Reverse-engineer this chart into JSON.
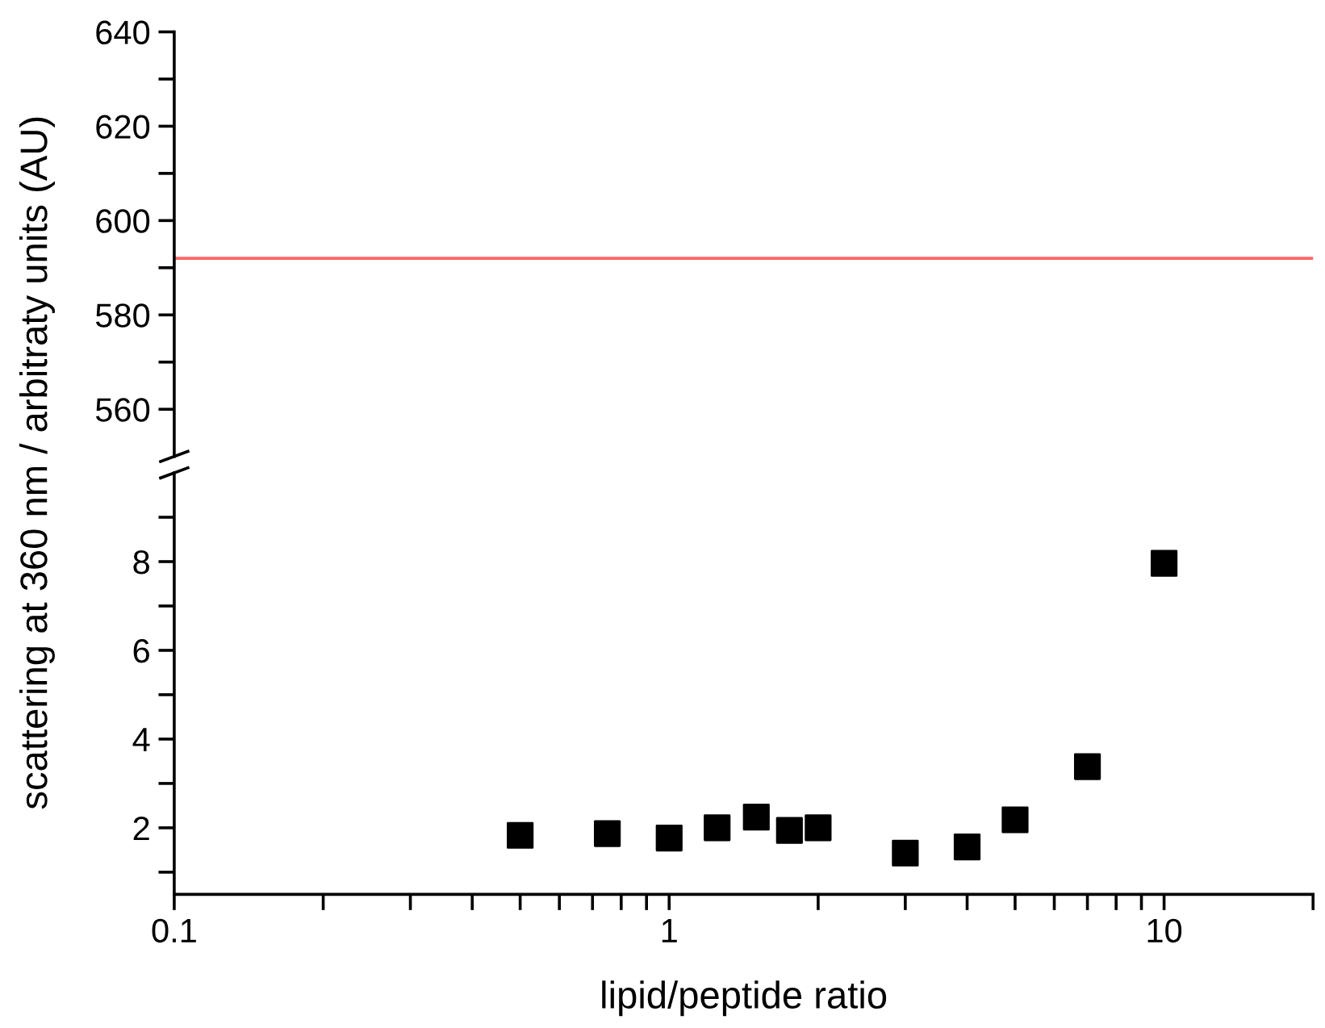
{
  "chart_data": [
    {
      "type": "scatter",
      "ylabel": "scattering at 360 nm / arbitraty units (AU)",
      "log": "x",
      "xlim": [
        0.1,
        20
      ],
      "ylim": [
        550,
        640
      ],
      "yticks": [
        560,
        {
          "value": 570,
          "label": null
        },
        580,
        {
          "value": 590,
          "label": null
        },
        600,
        {
          "value": 610,
          "label": null
        },
        620,
        {
          "value": 630,
          "label": null
        },
        640
      ],
      "ref_lines": [
        {
          "axis": "y",
          "value": 592,
          "label": null,
          "color": "#ff6666"
        }
      ],
      "tick_labels": "y",
      "grid": false,
      "legend": false
    },
    {
      "type": "scatter",
      "xlabel": "lipid/peptide ratio",
      "log": "x",
      "xlim": [
        0.1,
        20
      ],
      "ylim": [
        0.5,
        10
      ],
      "xticks": [
        0.1,
        {
          "value": 0.2,
          "label": null
        },
        {
          "value": 0.3,
          "label": null
        },
        {
          "value": 0.4,
          "label": null
        },
        {
          "value": 0.5,
          "label": null
        },
        {
          "value": 0.6,
          "label": null
        },
        {
          "value": 0.7,
          "label": null
        },
        {
          "value": 0.8,
          "label": null
        },
        {
          "value": 0.9,
          "label": null
        },
        1,
        {
          "value": 2,
          "label": null
        },
        {
          "value": 3,
          "label": null
        },
        {
          "value": 4,
          "label": null
        },
        {
          "value": 5,
          "label": null
        },
        {
          "value": 6,
          "label": null
        },
        {
          "value": 7,
          "label": null
        },
        {
          "value": 8,
          "label": null
        },
        {
          "value": 9,
          "label": null
        },
        10,
        {
          "value": 20,
          "label": null
        }
      ],
      "yticks": [
        {
          "value": 1,
          "label": null
        },
        2,
        {
          "value": 3,
          "label": null
        },
        4,
        {
          "value": 5,
          "label": null
        },
        6,
        {
          "value": 7,
          "label": null
        },
        8,
        {
          "value": 9,
          "label": null
        }
      ],
      "x": [
        0.5,
        0.75,
        1,
        1.25,
        1.5,
        1.75,
        2,
        3,
        4,
        5,
        7,
        10
      ],
      "series": [
        {
          "color": "#000000",
          "values": [
            1.83,
            1.87,
            1.77,
            2.0,
            2.24,
            1.94,
            2.0,
            1.43,
            1.57,
            2.18,
            3.38,
            7.96
          ]
        }
      ],
      "marker": "square",
      "grid": false,
      "legend": false
    }
  ]
}
